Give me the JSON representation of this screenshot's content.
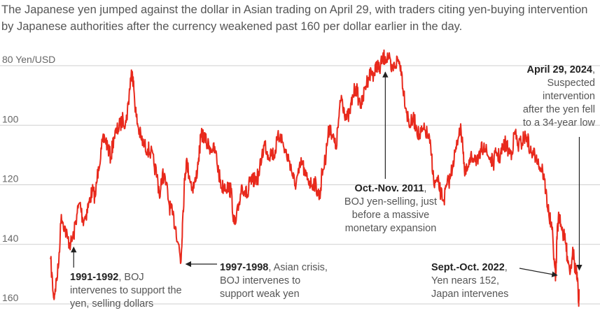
{
  "subtitle": "The Japanese yen jumped against the dollar in Asian trading on April 29, with traders citing yen-buying intervention by Japanese authorities after the currency weakened past 160 per dollar earlier in the day.",
  "colors": {
    "line": "#e8291c",
    "grid": "#cfcfcf",
    "text": "#555555",
    "arrow": "#222222"
  },
  "chart_data": {
    "type": "line",
    "ylabel": "Yen/USD",
    "y_inverted": true,
    "ylim": [
      80,
      160
    ],
    "yticks": [
      80,
      100,
      120,
      140,
      160
    ],
    "ytick_labels": [
      "80 Yen/USD",
      "100",
      "120",
      "140",
      "160"
    ],
    "xlim": [
      1990.0,
      2024.4
    ],
    "series": [
      {
        "points": [
          [
            1990.1,
            145
          ],
          [
            1990.3,
            158
          ],
          [
            1990.4,
            155
          ],
          [
            1990.6,
            148
          ],
          [
            1990.8,
            130
          ],
          [
            1991.0,
            134
          ],
          [
            1991.2,
            138
          ],
          [
            1991.4,
            140
          ],
          [
            1991.6,
            137
          ],
          [
            1991.8,
            130
          ],
          [
            1992.0,
            126
          ],
          [
            1992.2,
            132
          ],
          [
            1992.4,
            130
          ],
          [
            1992.6,
            126
          ],
          [
            1992.8,
            122
          ],
          [
            1993.0,
            124
          ],
          [
            1993.2,
            114
          ],
          [
            1993.4,
            108
          ],
          [
            1993.6,
            104
          ],
          [
            1993.8,
            107
          ],
          [
            1994.0,
            111
          ],
          [
            1994.2,
            104
          ],
          [
            1994.4,
            102
          ],
          [
            1994.6,
            100
          ],
          [
            1994.8,
            98
          ],
          [
            1995.0,
            99
          ],
          [
            1995.15,
            92
          ],
          [
            1995.3,
            84
          ],
          [
            1995.4,
            82
          ],
          [
            1995.5,
            88
          ],
          [
            1995.65,
            97
          ],
          [
            1995.8,
            101
          ],
          [
            1996.0,
            105
          ],
          [
            1996.2,
            107
          ],
          [
            1996.4,
            108
          ],
          [
            1996.6,
            109
          ],
          [
            1996.8,
            113
          ],
          [
            1997.0,
            117
          ],
          [
            1997.2,
            124
          ],
          [
            1997.35,
            116
          ],
          [
            1997.6,
            120
          ],
          [
            1997.8,
            127
          ],
          [
            1998.0,
            130
          ],
          [
            1998.2,
            134
          ],
          [
            1998.4,
            140
          ],
          [
            1998.55,
            146
          ],
          [
            1998.65,
            133
          ],
          [
            1998.8,
            118
          ],
          [
            1998.9,
            112
          ],
          [
            1999.1,
            117
          ],
          [
            1999.3,
            121
          ],
          [
            1999.5,
            119
          ],
          [
            1999.7,
            111
          ],
          [
            1999.85,
            104
          ],
          [
            2000.0,
            103
          ],
          [
            2000.2,
            106
          ],
          [
            2000.4,
            107
          ],
          [
            2000.6,
            108
          ],
          [
            2000.8,
            109
          ],
          [
            2001.0,
            116
          ],
          [
            2001.2,
            121
          ],
          [
            2001.4,
            120
          ],
          [
            2001.6,
            121
          ],
          [
            2001.8,
            122
          ],
          [
            2002.0,
            133
          ],
          [
            2002.1,
            133
          ],
          [
            2002.3,
            127
          ],
          [
            2002.5,
            120
          ],
          [
            2002.7,
            122
          ],
          [
            2002.9,
            124
          ],
          [
            2003.0,
            119
          ],
          [
            2003.2,
            119
          ],
          [
            2003.4,
            118
          ],
          [
            2003.6,
            117
          ],
          [
            2003.8,
            110
          ],
          [
            2004.0,
            106
          ],
          [
            2004.2,
            110
          ],
          [
            2004.4,
            109
          ],
          [
            2004.6,
            110
          ],
          [
            2004.8,
            105
          ],
          [
            2005.0,
            103
          ],
          [
            2005.2,
            107
          ],
          [
            2005.4,
            110
          ],
          [
            2005.6,
            112
          ],
          [
            2005.8,
            117
          ],
          [
            2005.95,
            120
          ],
          [
            2006.2,
            116
          ],
          [
            2006.4,
            112
          ],
          [
            2006.6,
            117
          ],
          [
            2006.8,
            118
          ],
          [
            2007.0,
            120
          ],
          [
            2007.2,
            119
          ],
          [
            2007.4,
            122
          ],
          [
            2007.55,
            124
          ],
          [
            2007.7,
            116
          ],
          [
            2007.9,
            112
          ],
          [
            2008.0,
            107
          ],
          [
            2008.2,
            100
          ],
          [
            2008.4,
            104
          ],
          [
            2008.6,
            108
          ],
          [
            2008.8,
            97
          ],
          [
            2008.95,
            90
          ],
          [
            2009.1,
            94
          ],
          [
            2009.3,
            98
          ],
          [
            2009.5,
            96
          ],
          [
            2009.7,
            90
          ],
          [
            2009.9,
            87
          ],
          [
            2010.1,
            92
          ],
          [
            2010.3,
            93
          ],
          [
            2010.5,
            87
          ],
          [
            2010.7,
            84
          ],
          [
            2010.9,
            82
          ],
          [
            2011.1,
            83
          ],
          [
            2011.25,
            79
          ],
          [
            2011.4,
            82
          ],
          [
            2011.6,
            78
          ],
          [
            2011.8,
            77
          ],
          [
            2012.0,
            77
          ],
          [
            2012.2,
            82
          ],
          [
            2012.4,
            80
          ],
          [
            2012.6,
            78
          ],
          [
            2012.8,
            80
          ],
          [
            2013.0,
            89
          ],
          [
            2013.2,
            96
          ],
          [
            2013.4,
            100
          ],
          [
            2013.6,
            98
          ],
          [
            2013.8,
            100
          ],
          [
            2014.0,
            104
          ],
          [
            2014.2,
            102
          ],
          [
            2014.4,
            102
          ],
          [
            2014.6,
            104
          ],
          [
            2014.8,
            110
          ],
          [
            2014.95,
            120
          ],
          [
            2015.2,
            119
          ],
          [
            2015.4,
            123
          ],
          [
            2015.6,
            125
          ],
          [
            2015.8,
            120
          ],
          [
            2016.0,
            118
          ],
          [
            2016.2,
            112
          ],
          [
            2016.4,
            108
          ],
          [
            2016.6,
            101
          ],
          [
            2016.8,
            104
          ],
          [
            2016.95,
            117
          ],
          [
            2017.2,
            114
          ],
          [
            2017.4,
            111
          ],
          [
            2017.6,
            110
          ],
          [
            2017.8,
            113
          ],
          [
            2018.0,
            109
          ],
          [
            2018.2,
            106
          ],
          [
            2018.4,
            110
          ],
          [
            2018.6,
            111
          ],
          [
            2018.8,
            113
          ],
          [
            2019.0,
            109
          ],
          [
            2019.2,
            111
          ],
          [
            2019.4,
            108
          ],
          [
            2019.6,
            106
          ],
          [
            2019.8,
            109
          ],
          [
            2020.0,
            109
          ],
          [
            2020.2,
            102
          ],
          [
            2020.4,
            107
          ],
          [
            2020.6,
            106
          ],
          [
            2020.8,
            104
          ],
          [
            2021.0,
            104
          ],
          [
            2021.2,
            109
          ],
          [
            2021.4,
            110
          ],
          [
            2021.6,
            110
          ],
          [
            2021.8,
            114
          ],
          [
            2022.0,
            115
          ],
          [
            2022.2,
            122
          ],
          [
            2022.4,
            130
          ],
          [
            2022.6,
            135
          ],
          [
            2022.8,
            148
          ],
          [
            2022.85,
            151
          ],
          [
            2022.95,
            134
          ],
          [
            2023.1,
            130
          ],
          [
            2023.3,
            136
          ],
          [
            2023.5,
            140
          ],
          [
            2023.6,
            144
          ],
          [
            2023.8,
            149
          ],
          [
            2023.95,
            141
          ],
          [
            2024.1,
            148
          ],
          [
            2024.2,
            150
          ],
          [
            2024.3,
            156
          ],
          [
            2024.33,
            160
          ],
          [
            2024.36,
            155
          ]
        ]
      }
    ],
    "annotations": [
      {
        "x": 1991.6,
        "y": 140,
        "lines": [
          [
            {
              "b": "1991-1992"
            },
            {
              "t": ", BOJ"
            }
          ],
          [
            {
              "t": "intervenes to support the"
            }
          ],
          [
            {
              "t": "yen, selling dollars"
            }
          ]
        ]
      },
      {
        "x": 1998.6,
        "y": 146,
        "lines": [
          [
            {
              "b": "1997-1998"
            },
            {
              "t": ", Asian crisis,"
            }
          ],
          [
            {
              "t": "BOJ intervenes to"
            }
          ],
          [
            {
              "t": "support weak yen"
            }
          ]
        ]
      },
      {
        "x": 2011.8,
        "y": 77,
        "lines": [
          [
            {
              "b": "Oct.-Nov. 2011"
            },
            {
              "t": ","
            }
          ],
          [
            {
              "t": "BOJ yen-selling, just"
            }
          ],
          [
            {
              "t": "before a massive"
            }
          ],
          [
            {
              "t": "monetary expansion"
            }
          ]
        ]
      },
      {
        "x": 2022.85,
        "y": 151,
        "lines": [
          [
            {
              "b": "Sept.-Oct. 2022"
            },
            {
              "t": ","
            }
          ],
          [
            {
              "t": "Yen nears 152,"
            }
          ],
          [
            {
              "t": "Japan intervenes"
            }
          ]
        ]
      },
      {
        "x": 2024.33,
        "y": 158,
        "lines": [
          [
            {
              "b": "April 29, 2024"
            },
            {
              "t": ","
            }
          ],
          [
            {
              "t": "Suspected"
            }
          ],
          [
            {
              "t": "intervention"
            }
          ],
          [
            {
              "t": "after the yen fell"
            }
          ],
          [
            {
              "t": "to a 34-year low"
            }
          ]
        ]
      }
    ]
  }
}
